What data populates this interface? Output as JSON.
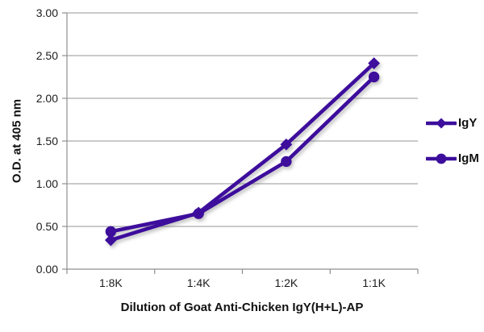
{
  "chart_data": {
    "type": "line",
    "title": "",
    "xlabel": "Dilution of Goat Anti-Chicken IgY(H+L)-AP",
    "ylabel": "O.D. at 405 nm",
    "categories": [
      "1:8K",
      "1:4K",
      "1:2K",
      "1:1K"
    ],
    "series": [
      {
        "name": "IgY",
        "marker": "diamond",
        "values": [
          0.34,
          0.66,
          1.46,
          2.41
        ]
      },
      {
        "name": "IgM",
        "marker": "circle",
        "values": [
          0.44,
          0.65,
          1.26,
          2.25
        ]
      }
    ],
    "ylim": [
      0,
      3
    ],
    "ytick_step": 0.5,
    "ytick_labels": [
      "0.00",
      "0.50",
      "1.00",
      "1.50",
      "2.00",
      "2.50",
      "3.00"
    ],
    "grid": true,
    "legend_position": "right",
    "colors": {
      "series": "#3D0E9C",
      "grid": "#ABABAB",
      "axis": "#8F8F8F",
      "text": "#1C1C1C"
    }
  }
}
